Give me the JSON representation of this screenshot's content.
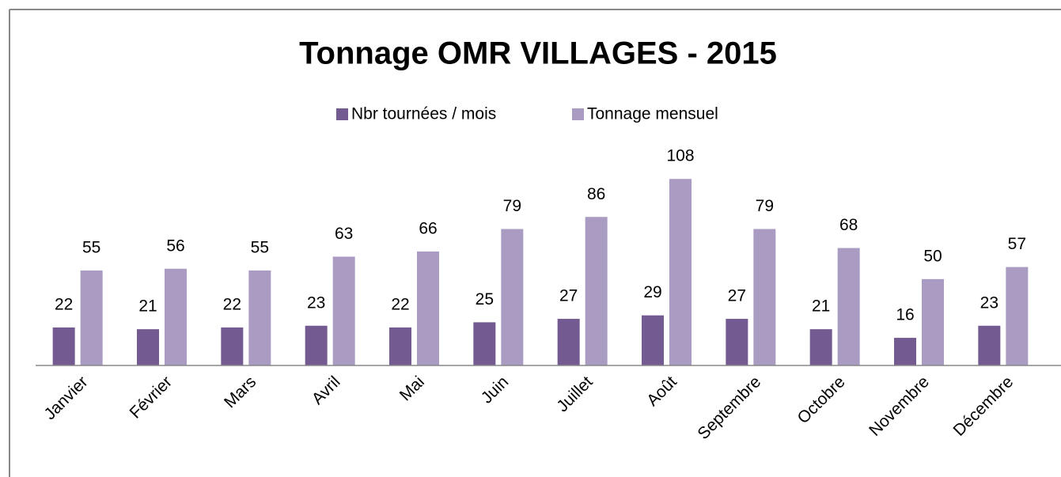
{
  "chart_data": {
    "type": "bar",
    "title": "Tonnage OMR VILLAGES - 2015",
    "categories": [
      "Janvier",
      "Février",
      "Mars",
      "Avril",
      "Mai",
      "Juin",
      "Juillet",
      "Août",
      "Septembre",
      "Octobre",
      "Novembre",
      "Décembre"
    ],
    "series": [
      {
        "name": "Nbr tournées / mois",
        "color": "#735b91",
        "values": [
          22,
          21,
          22,
          23,
          22,
          25,
          27,
          29,
          27,
          21,
          16,
          23
        ]
      },
      {
        "name": "Tonnage mensuel",
        "color": "#a99bc2",
        "values": [
          55,
          56,
          55,
          63,
          66,
          79,
          86,
          108,
          79,
          68,
          50,
          57
        ]
      }
    ],
    "ylim": [
      0,
      120
    ],
    "legend": "top"
  }
}
